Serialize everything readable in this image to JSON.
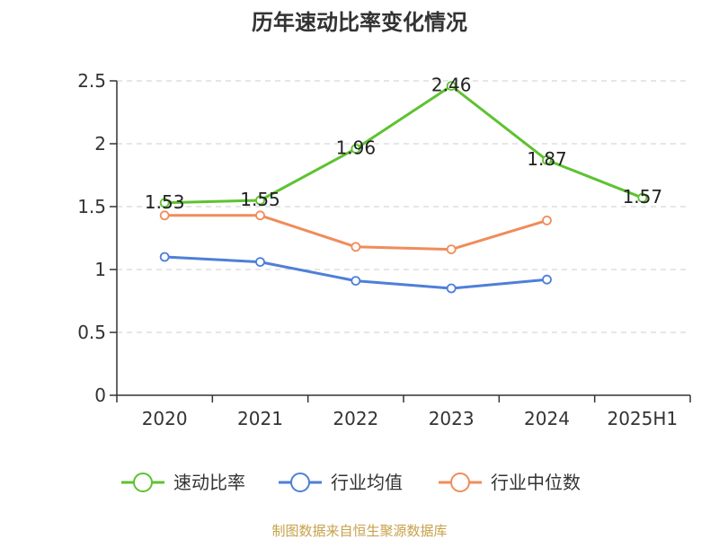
{
  "colors": {
    "axis": "#333333",
    "grid": "#cccccc",
    "source": "#c7a14a"
  },
  "chart_data": {
    "type": "line",
    "title": "历年速动比率变化情况",
    "xlabel": "",
    "ylabel": "",
    "categories": [
      "2020",
      "2021",
      "2022",
      "2023",
      "2024",
      "2025H1"
    ],
    "ylim": [
      0,
      2.5
    ],
    "yticks": [
      0,
      0.5,
      1,
      1.5,
      2,
      2.5
    ],
    "ytick_labels": [
      "0",
      "0.5",
      "1",
      "1.5",
      "2",
      "2.5"
    ],
    "grid": true,
    "legend_position": "bottom",
    "series": [
      {
        "name": "速动比率",
        "color": "#5ec231",
        "show_labels": true,
        "values": [
          1.53,
          1.55,
          1.96,
          2.46,
          1.87,
          1.57
        ],
        "labels": [
          "1.53",
          "1.55",
          "1.96",
          "2.46",
          "1.87",
          "1.57"
        ]
      },
      {
        "name": "行业均值",
        "color": "#4e7fd9",
        "show_labels": false,
        "values": [
          1.1,
          1.06,
          0.91,
          0.85,
          0.92,
          null
        ]
      },
      {
        "name": "行业中位数",
        "color": "#f08c5a",
        "show_labels": false,
        "values": [
          1.43,
          1.43,
          1.18,
          1.16,
          1.39,
          null
        ]
      }
    ]
  },
  "source_text": "制图数据来自恒生聚源数据库"
}
